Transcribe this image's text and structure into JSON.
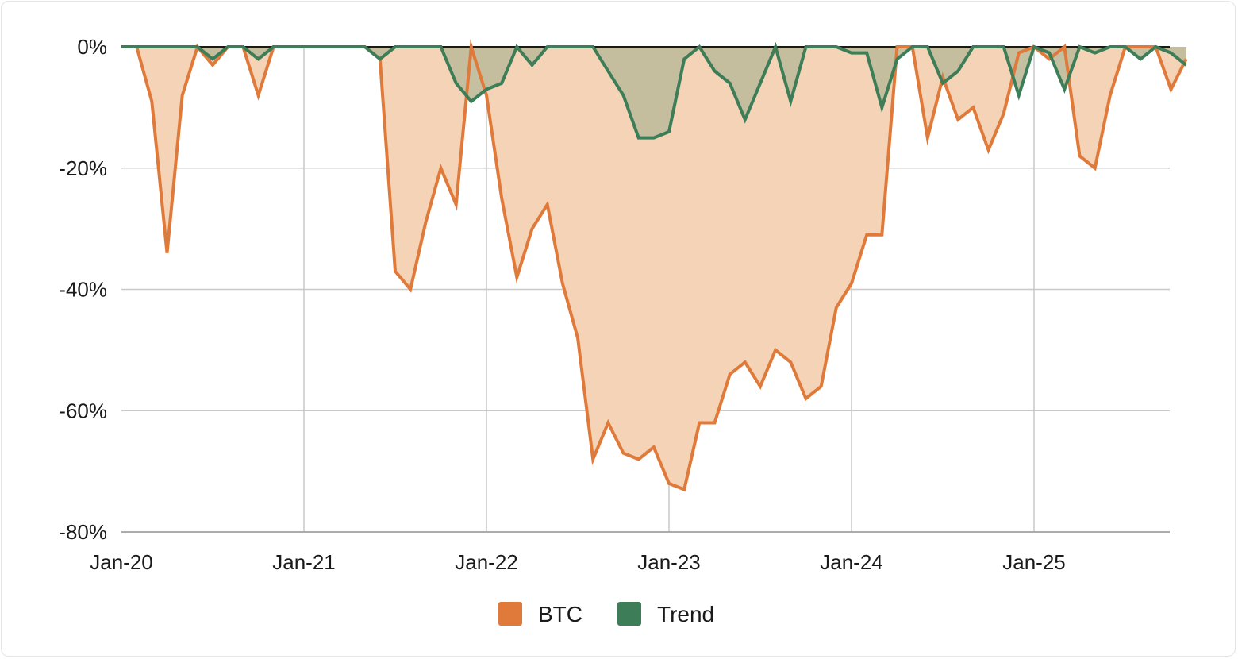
{
  "chart_data": {
    "type": "area",
    "x_tick_labels": [
      "Jan-20",
      "Jan-21",
      "Jan-22",
      "Jan-23",
      "Jan-24",
      "Jan-25"
    ],
    "y_tick_labels": [
      "0%",
      "-20%",
      "-40%",
      "-60%",
      "-80%"
    ],
    "y_ticks": [
      0,
      -20,
      -40,
      -60,
      -80
    ],
    "ylim": [
      -80,
      0
    ],
    "x_unit": "months since Jan-20",
    "xlim": [
      0,
      69
    ],
    "grid": true,
    "legend_position": "bottom",
    "series": [
      {
        "name": "BTC",
        "color": "#E07A3A",
        "fill": "#F5D3B7",
        "values": [
          0,
          0,
          -9,
          -34,
          -8,
          0,
          -3,
          0,
          0,
          -8,
          0,
          0,
          0,
          0,
          0,
          0,
          0,
          -2,
          -37,
          -40,
          -29,
          -20,
          -26,
          0,
          -8,
          -25,
          -38,
          -30,
          -26,
          -39,
          -48,
          -68,
          -62,
          -67,
          -68,
          -66,
          -72,
          -73,
          -62,
          -62,
          -54,
          -52,
          -56,
          -50,
          -52,
          -58,
          -56,
          -43,
          -39,
          -31,
          -31,
          0,
          0,
          -15,
          -5,
          -12,
          -10,
          -17,
          -11,
          -1,
          0,
          -2,
          0,
          -18,
          -20,
          -8,
          0,
          0,
          0,
          -7,
          -2
        ]
      },
      {
        "name": "Trend",
        "color": "#3D7D57",
        "fill": "#C1BD9C",
        "values": [
          0,
          0,
          0,
          0,
          0,
          0,
          -2,
          0,
          0,
          -2,
          0,
          0,
          0,
          0,
          0,
          0,
          0,
          -2,
          0,
          0,
          0,
          0,
          -6,
          -9,
          -7,
          -6,
          0,
          -3,
          0,
          0,
          0,
          0,
          -4,
          -8,
          -15,
          -15,
          -14,
          -2,
          0,
          -4,
          -6,
          -12,
          -6,
          0,
          -9,
          0,
          0,
          0,
          -1,
          -1,
          -10,
          -2,
          0,
          0,
          -6,
          -4,
          0,
          0,
          0,
          -8,
          0,
          -1,
          -7,
          0,
          -1,
          0,
          0,
          -2,
          0,
          -1,
          -3
        ]
      }
    ]
  }
}
